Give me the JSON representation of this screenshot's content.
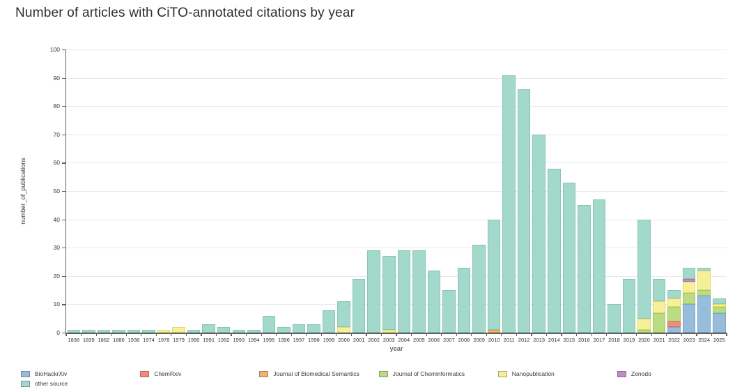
{
  "page": {
    "title": "Number of articles with CiTO-annotated citations by year"
  },
  "chart_data": {
    "type": "bar",
    "stacked": true,
    "title": "Number of articles with CiTO-annotated citations by year",
    "xlabel": "year",
    "ylabel": "number_of_publications",
    "ylim": [
      0,
      100
    ],
    "ytick_step": 10,
    "grid": true,
    "legend_position": "bottom",
    "categories": [
      "1838",
      "1839",
      "1862",
      "1886",
      "1938",
      "1974",
      "1978",
      "1979",
      "1990",
      "1991",
      "1992",
      "1993",
      "1994",
      "1995",
      "1996",
      "1997",
      "1998",
      "1999",
      "2000",
      "2001",
      "2002",
      "2003",
      "2004",
      "2005",
      "2006",
      "2007",
      "2008",
      "2009",
      "2010",
      "2011",
      "2012",
      "2013",
      "2014",
      "2015",
      "2016",
      "2017",
      "2018",
      "2019",
      "2020",
      "2021",
      "2022",
      "2023",
      "2024",
      "2025"
    ],
    "series": [
      {
        "name": "BioHackrXiv",
        "color": "#96bedc",
        "border_color": "#7da7c9",
        "values": [
          0,
          0,
          0,
          0,
          0,
          0,
          0,
          0,
          0,
          0,
          0,
          0,
          0,
          0,
          0,
          0,
          0,
          0,
          0,
          0,
          0,
          0,
          0,
          0,
          0,
          0,
          0,
          0,
          0,
          0,
          0,
          0,
          0,
          0,
          0,
          0,
          0,
          0,
          0,
          0,
          2,
          10,
          13,
          7
        ]
      },
      {
        "name": "ChemRxiv",
        "color": "#f28b7d",
        "border_color": "#de6a5c",
        "values": [
          0,
          0,
          0,
          0,
          0,
          0,
          0,
          0,
          0,
          0,
          0,
          0,
          0,
          0,
          0,
          0,
          0,
          0,
          0,
          0,
          0,
          0,
          0,
          0,
          0,
          0,
          0,
          0,
          0,
          0,
          0,
          0,
          0,
          0,
          0,
          0,
          0,
          0,
          0,
          0,
          2,
          0,
          0,
          0
        ]
      },
      {
        "name": "Journal of Biomedical Semantics",
        "color": "#f2b368",
        "border_color": "#df9a46",
        "values": [
          0,
          0,
          0,
          0,
          0,
          0,
          0,
          0,
          0,
          0,
          0,
          0,
          0,
          0,
          0,
          0,
          0,
          0,
          0,
          0,
          0,
          0,
          0,
          0,
          0,
          0,
          0,
          0,
          1,
          0,
          0,
          0,
          0,
          0,
          0,
          0,
          0,
          0,
          0,
          0,
          0,
          0,
          0,
          0
        ]
      },
      {
        "name": "Journal of Cheminformatics",
        "color": "#bcdc84",
        "border_color": "#a2c85f",
        "values": [
          0,
          0,
          0,
          0,
          0,
          0,
          0,
          0,
          0,
          0,
          0,
          0,
          0,
          0,
          0,
          0,
          0,
          0,
          0,
          0,
          0,
          0,
          0,
          0,
          0,
          0,
          0,
          0,
          0,
          0,
          0,
          0,
          0,
          0,
          0,
          0,
          0,
          0,
          1,
          7,
          5,
          4,
          2,
          2
        ]
      },
      {
        "name": "Nanopublication",
        "color": "#f6f096",
        "border_color": "#e0d96c",
        "values": [
          0,
          0,
          0,
          0,
          0,
          0,
          1,
          2,
          0,
          0,
          0,
          0,
          0,
          0,
          0,
          0,
          0,
          0,
          2,
          0,
          0,
          1,
          0,
          0,
          0,
          0,
          0,
          0,
          0,
          0,
          0,
          0,
          0,
          0,
          0,
          0,
          0,
          0,
          4,
          4,
          3,
          4,
          7,
          1
        ]
      },
      {
        "name": "Zenodo",
        "color": "#c08cc4",
        "border_color": "#a76fae",
        "values": [
          0,
          0,
          0,
          0,
          0,
          0,
          0,
          0,
          0,
          0,
          0,
          0,
          0,
          0,
          0,
          0,
          0,
          0,
          0,
          0,
          0,
          0,
          0,
          0,
          0,
          0,
          0,
          0,
          0,
          0,
          0,
          0,
          0,
          0,
          0,
          0,
          0,
          0,
          0,
          0,
          0,
          1,
          0,
          0
        ]
      },
      {
        "name": "other source",
        "color": "#a3d9cb",
        "border_color": "#87c5b5",
        "values": [
          1,
          1,
          1,
          1,
          1,
          1,
          0,
          0,
          1,
          3,
          2,
          1,
          1,
          6,
          2,
          3,
          3,
          8,
          9,
          19,
          29,
          26,
          29,
          29,
          22,
          15,
          23,
          31,
          39,
          91,
          86,
          70,
          58,
          53,
          45,
          47,
          10,
          19,
          35,
          8,
          3,
          4,
          1,
          2
        ]
      }
    ]
  }
}
